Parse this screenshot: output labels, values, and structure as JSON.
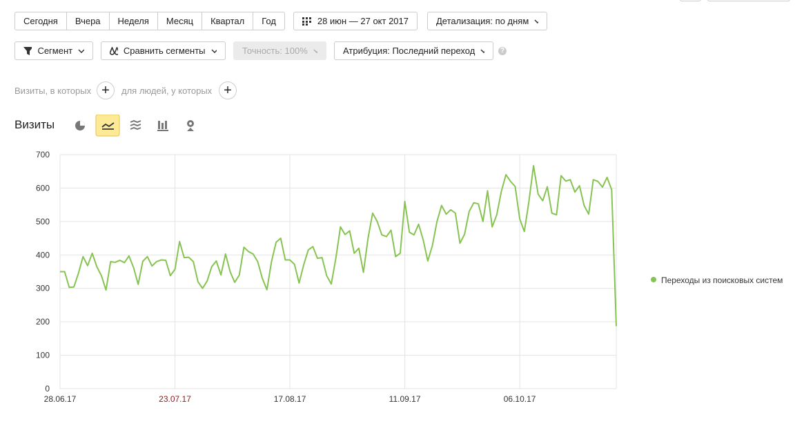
{
  "toolbar": {
    "periods": [
      "Сегодня",
      "Вчера",
      "Неделя",
      "Месяц",
      "Квартал",
      "Год"
    ],
    "date_range": "28 июн — 27 окт 2017",
    "detail": "Детализация: по дням"
  },
  "segment_bar": {
    "segment": "Сегмент",
    "compare": "Сравнить сегменты",
    "accuracy": "Точность: 100%",
    "attribution": "Атрибуция: Последний переход"
  },
  "filters": {
    "visits": "Визиты, в которых",
    "people": "для людей, у которых"
  },
  "chart_data": {
    "type": "line",
    "title": "Визиты",
    "x": [
      "28.06.17",
      "29.06.17",
      "30.06.17",
      "01.07.17",
      "02.07.17",
      "03.07.17",
      "04.07.17",
      "05.07.17",
      "06.07.17",
      "07.07.17",
      "08.07.17",
      "09.07.17",
      "10.07.17",
      "11.07.17",
      "12.07.17",
      "13.07.17",
      "14.07.17",
      "15.07.17",
      "16.07.17",
      "17.07.17",
      "18.07.17",
      "19.07.17",
      "20.07.17",
      "21.07.17",
      "22.07.17",
      "23.07.17",
      "24.07.17",
      "25.07.17",
      "26.07.17",
      "27.07.17",
      "28.07.17",
      "29.07.17",
      "30.07.17",
      "31.07.17",
      "01.08.17",
      "02.08.17",
      "03.08.17",
      "04.08.17",
      "05.08.17",
      "06.08.17",
      "07.08.17",
      "08.08.17",
      "09.08.17",
      "10.08.17",
      "11.08.17",
      "12.08.17",
      "13.08.17",
      "14.08.17",
      "15.08.17",
      "16.08.17",
      "17.08.17",
      "18.08.17",
      "19.08.17",
      "20.08.17",
      "21.08.17",
      "22.08.17",
      "23.08.17",
      "24.08.17",
      "25.08.17",
      "26.08.17",
      "27.08.17",
      "28.08.17",
      "29.08.17",
      "30.08.17",
      "31.08.17",
      "01.09.17",
      "02.09.17",
      "03.09.17",
      "04.09.17",
      "05.09.17",
      "06.09.17",
      "07.09.17",
      "08.09.17",
      "09.09.17",
      "10.09.17",
      "11.09.17",
      "12.09.17",
      "13.09.17",
      "14.09.17",
      "15.09.17",
      "16.09.17",
      "17.09.17",
      "18.09.17",
      "19.09.17",
      "20.09.17",
      "21.09.17",
      "22.09.17",
      "23.09.17",
      "24.09.17",
      "25.09.17",
      "26.09.17",
      "27.09.17",
      "28.09.17",
      "29.09.17",
      "30.09.17",
      "01.10.17",
      "02.10.17",
      "03.10.17",
      "04.10.17",
      "05.10.17",
      "06.10.17",
      "07.10.17",
      "08.10.17",
      "09.10.17",
      "10.10.17",
      "11.10.17",
      "12.10.17",
      "13.10.17",
      "14.10.17",
      "15.10.17",
      "16.10.17",
      "17.10.17",
      "18.10.17",
      "19.10.17",
      "20.10.17",
      "21.10.17",
      "22.10.17",
      "23.10.17",
      "24.10.17",
      "25.10.17",
      "26.10.17",
      "27.10.17"
    ],
    "series": [
      {
        "name": "Переходы из поисковых систем",
        "color": "#86c351",
        "values": [
          350,
          350,
          303,
          304,
          345,
          395,
          368,
          405,
          365,
          338,
          295,
          380,
          378,
          384,
          377,
          397,
          362,
          312,
          381,
          395,
          367,
          380,
          385,
          384,
          338,
          357,
          440,
          392,
          393,
          380,
          320,
          300,
          322,
          365,
          382,
          340,
          403,
          350,
          318,
          340,
          423,
          410,
          403,
          380,
          330,
          296,
          380,
          438,
          450,
          385,
          385,
          372,
          316,
          370,
          415,
          425,
          390,
          392,
          338,
          313,
          390,
          484,
          461,
          472,
          405,
          420,
          348,
          450,
          525,
          500,
          460,
          455,
          474,
          395,
          405,
          560,
          468,
          460,
          492,
          445,
          382,
          428,
          500,
          548,
          522,
          535,
          525,
          435,
          462,
          530,
          556,
          553,
          500,
          592,
          484,
          520,
          590,
          640,
          620,
          605,
          508,
          470,
          560,
          667,
          582,
          562,
          604,
          525,
          520,
          637,
          621,
          625,
          588,
          607,
          548,
          522,
          625,
          620,
          603,
          632,
          595,
          187
        ]
      }
    ],
    "ylim": [
      0,
      700
    ],
    "yticks": [
      0,
      100,
      200,
      300,
      400,
      500,
      600,
      700
    ],
    "xticks": [
      "28.06.17",
      "23.07.17",
      "17.08.17",
      "11.09.17",
      "06.10.17"
    ],
    "xtick_colors": [
      "#333333",
      "#8b1a1a",
      "#333333",
      "#333333",
      "#333333"
    ],
    "grid": true
  }
}
